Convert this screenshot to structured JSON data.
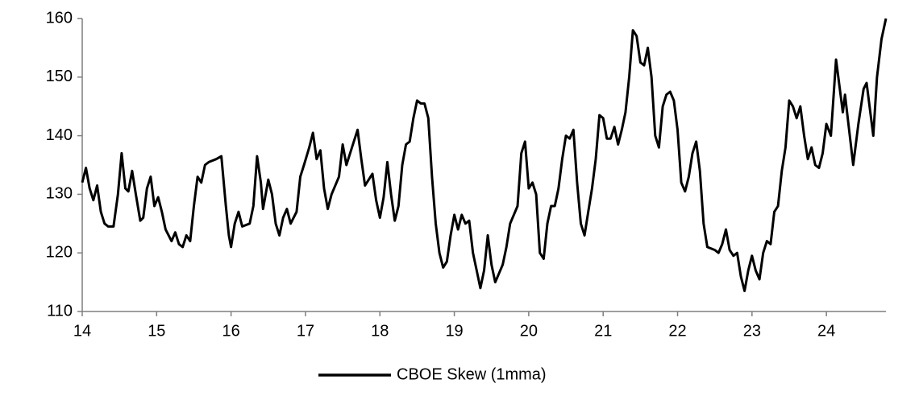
{
  "chart_data": {
    "type": "line",
    "xlim": [
      14,
      24.8
    ],
    "xticks": [
      14,
      15,
      16,
      17,
      18,
      19,
      20,
      21,
      22,
      23,
      24
    ],
    "ylim": [
      110,
      160
    ],
    "yticks": [
      110,
      120,
      130,
      140,
      150,
      160
    ],
    "series": [
      {
        "name": "CBOE Skew (1mma)",
        "color": "#000000",
        "x": [
          14.0,
          14.05,
          14.1,
          14.15,
          14.2,
          14.25,
          14.3,
          14.35,
          14.42,
          14.48,
          14.53,
          14.58,
          14.62,
          14.67,
          14.72,
          14.78,
          14.82,
          14.87,
          14.92,
          14.97,
          15.02,
          15.07,
          15.12,
          15.2,
          15.25,
          15.3,
          15.35,
          15.4,
          15.45,
          15.5,
          15.55,
          15.6,
          15.65,
          15.7,
          15.8,
          15.87,
          15.93,
          15.97,
          16.0,
          16.05,
          16.1,
          16.15,
          16.25,
          16.3,
          16.35,
          16.4,
          16.43,
          16.5,
          16.55,
          16.6,
          16.65,
          16.7,
          16.75,
          16.8,
          16.88,
          16.93,
          16.98,
          17.05,
          17.1,
          17.15,
          17.2,
          17.25,
          17.3,
          17.35,
          17.45,
          17.5,
          17.55,
          17.6,
          17.65,
          17.7,
          17.75,
          17.8,
          17.85,
          17.9,
          17.95,
          18.0,
          18.05,
          18.1,
          18.15,
          18.2,
          18.25,
          18.3,
          18.35,
          18.4,
          18.45,
          18.5,
          18.55,
          18.6,
          18.65,
          18.7,
          18.75,
          18.8,
          18.85,
          18.9,
          18.95,
          19.0,
          19.05,
          19.1,
          19.15,
          19.2,
          19.25,
          19.3,
          19.35,
          19.4,
          19.45,
          19.5,
          19.55,
          19.6,
          19.65,
          19.7,
          19.75,
          19.8,
          19.85,
          19.9,
          19.95,
          20.0,
          20.05,
          20.1,
          20.15,
          20.2,
          20.25,
          20.3,
          20.35,
          20.4,
          20.45,
          20.5,
          20.55,
          20.6,
          20.65,
          20.7,
          20.75,
          20.8,
          20.85,
          20.9,
          20.95,
          21.0,
          21.05,
          21.1,
          21.15,
          21.2,
          21.25,
          21.3,
          21.35,
          21.4,
          21.45,
          21.5,
          21.55,
          21.6,
          21.65,
          21.7,
          21.75,
          21.8,
          21.85,
          21.9,
          21.95,
          22.0,
          22.05,
          22.1,
          22.15,
          22.2,
          22.25,
          22.3,
          22.35,
          22.4,
          22.5,
          22.55,
          22.6,
          22.65,
          22.7,
          22.75,
          22.8,
          22.85,
          22.9,
          22.95,
          23.0,
          23.05,
          23.1,
          23.15,
          23.2,
          23.25,
          23.3,
          23.35,
          23.4,
          23.45,
          23.5,
          23.55,
          23.6,
          23.65,
          23.7,
          23.75,
          23.8,
          23.85,
          23.9,
          23.95,
          24.0,
          24.06,
          24.13,
          24.22,
          24.25,
          24.36,
          24.43,
          24.5,
          24.54,
          24.63,
          24.68,
          24.74,
          24.8
        ],
        "values": [
          132,
          134.5,
          131,
          129,
          131.5,
          127,
          125,
          124.5,
          124.5,
          130,
          137,
          131,
          130.5,
          134,
          130,
          125.5,
          126,
          131,
          133,
          128,
          129.5,
          127,
          124,
          122,
          123.5,
          121.5,
          121,
          123,
          122,
          128,
          133,
          132,
          135,
          135.5,
          136,
          136.5,
          128,
          123,
          121,
          125,
          127,
          124.5,
          125,
          128,
          136.5,
          132,
          127.5,
          132.5,
          130,
          125,
          123,
          126,
          127.5,
          125,
          127,
          133,
          135,
          138,
          140.5,
          136,
          137.5,
          131,
          127.5,
          130,
          133,
          138.5,
          135,
          137,
          139,
          141,
          136,
          131.5,
          132.5,
          133.5,
          129,
          126,
          129.5,
          135.5,
          130,
          125.5,
          128,
          135,
          138.5,
          139,
          143,
          146,
          145.5,
          145.5,
          143,
          133,
          125,
          120,
          117.5,
          118.5,
          123,
          126.5,
          124,
          126.5,
          125,
          125.5,
          120,
          117,
          114,
          117,
          123,
          118,
          115,
          116.5,
          118,
          121,
          125,
          126.5,
          128,
          137,
          139,
          131,
          132,
          130,
          120,
          119,
          125,
          128,
          128,
          131,
          136,
          140,
          139.5,
          141,
          132,
          125,
          123,
          127,
          131,
          136,
          143.5,
          143,
          139.5,
          139.5,
          141.5,
          138.5,
          141,
          144,
          150,
          158,
          157,
          152.5,
          152,
          155,
          150,
          140,
          138,
          145,
          147,
          147.5,
          146,
          141,
          132,
          130.5,
          133,
          137,
          139,
          134,
          125,
          121,
          120.5,
          120,
          121.5,
          124,
          120.5,
          119.5,
          120,
          116,
          113.5,
          117,
          119.5,
          117,
          115.5,
          120,
          122,
          121.5,
          127,
          128,
          134,
          138,
          146,
          145,
          143,
          145,
          140,
          136,
          138,
          135,
          134.5,
          137,
          142,
          140,
          153,
          144,
          147,
          135,
          142,
          148,
          149,
          140,
          150,
          156.5,
          160
        ]
      }
    ],
    "legend": "bottom"
  }
}
